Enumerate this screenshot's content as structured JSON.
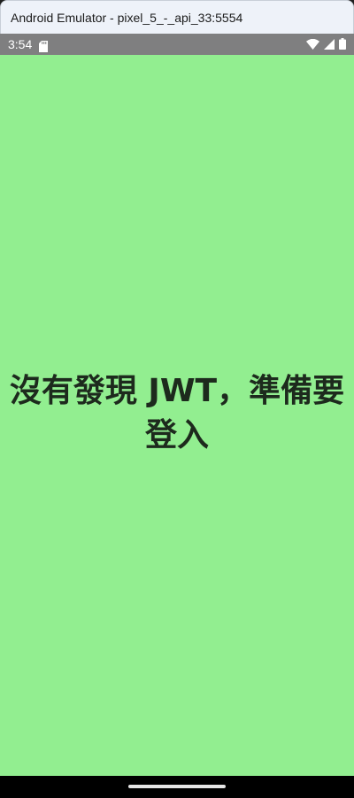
{
  "window": {
    "title": "Android Emulator - pixel_5_-_api_33:5554"
  },
  "status_bar": {
    "time": "3:54",
    "icons": [
      "sd-card-icon",
      "wifi-icon",
      "cellular-signal-icon",
      "battery-icon"
    ]
  },
  "app": {
    "background_color": "#92ee90",
    "message": "沒有發現 JWT，準備要登入"
  }
}
